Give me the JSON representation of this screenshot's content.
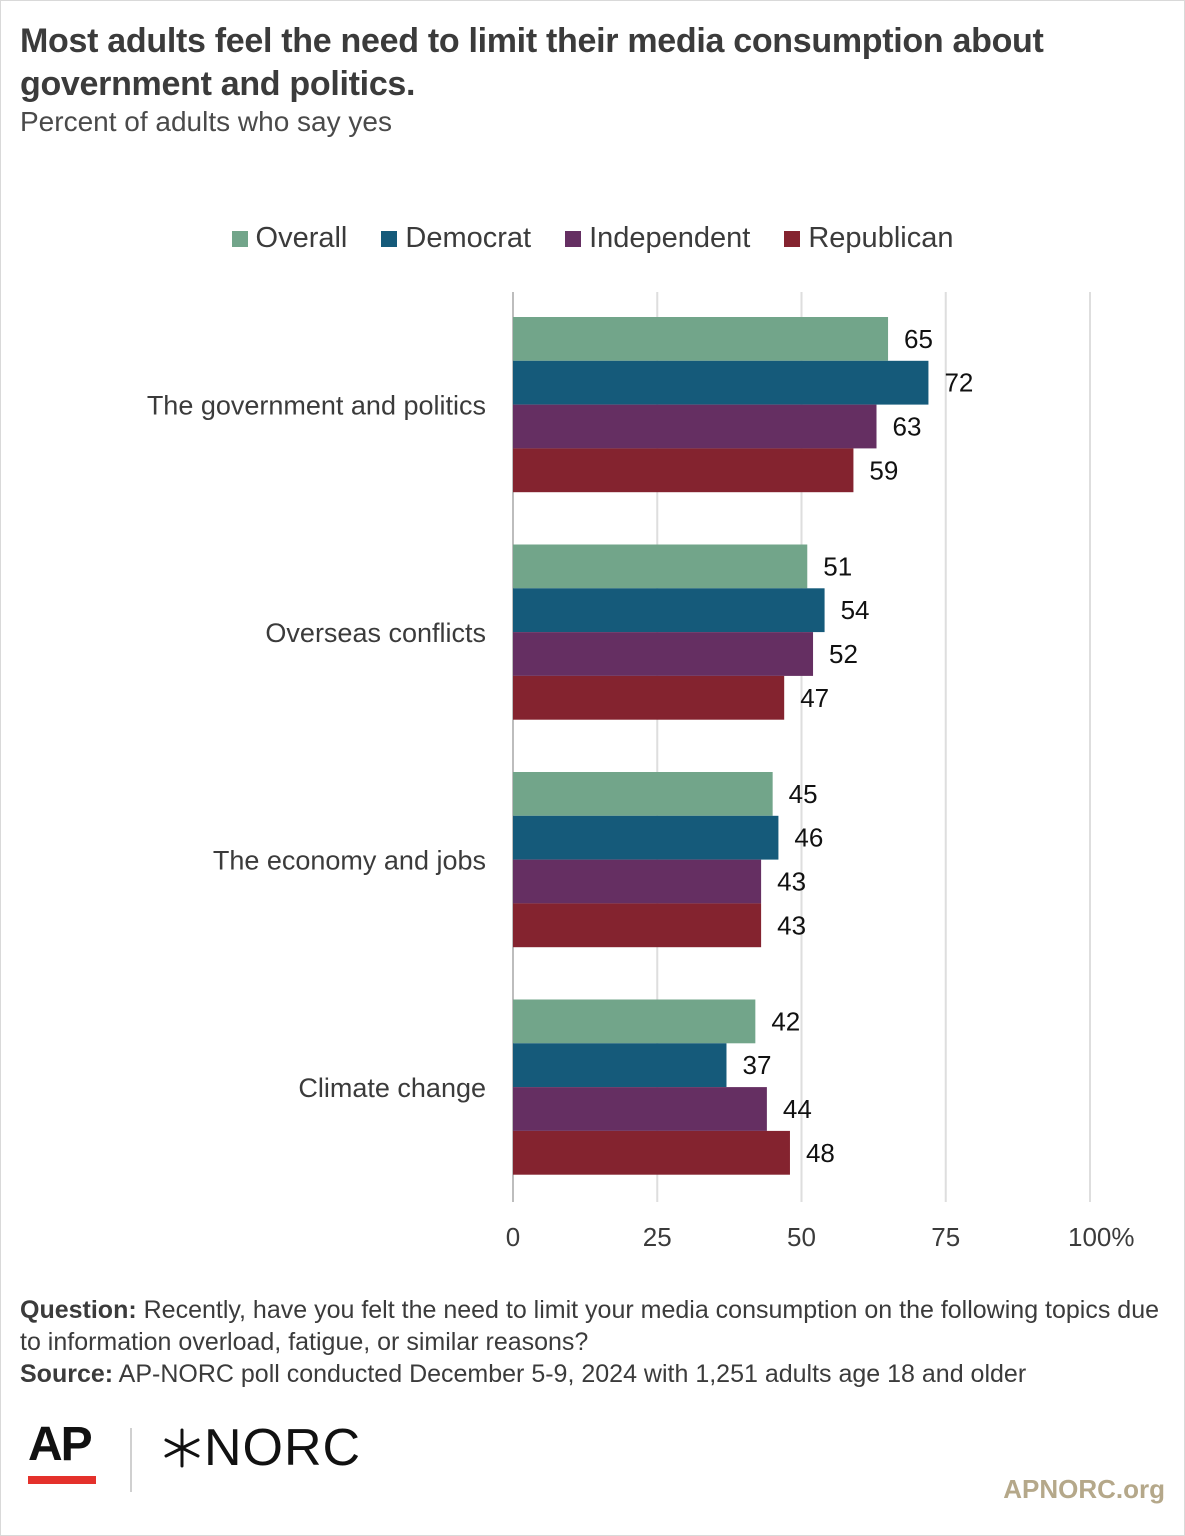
{
  "header": {
    "title": "Most adults feel the need to limit their media consumption about government and politics.",
    "subtitle": "Percent of adults who say yes"
  },
  "colors": {
    "Overall": "#72a58a",
    "Democrat": "#155a7a",
    "Independent": "#652f62",
    "Republican": "#84232f"
  },
  "chart_data": {
    "type": "bar",
    "orientation": "horizontal",
    "categories": [
      "The government and politics",
      "Overseas conflicts",
      "The economy and jobs",
      "Climate change"
    ],
    "series": [
      {
        "name": "Overall",
        "values": [
          65,
          51,
          45,
          42
        ]
      },
      {
        "name": "Democrat",
        "values": [
          72,
          54,
          46,
          37
        ]
      },
      {
        "name": "Independent",
        "values": [
          63,
          52,
          43,
          44
        ]
      },
      {
        "name": "Republican",
        "values": [
          59,
          47,
          43,
          48
        ]
      }
    ],
    "xlim": [
      0,
      100
    ],
    "xticks": [
      "0",
      "25",
      "50",
      "75",
      "100%"
    ],
    "grid": true,
    "legend": "top"
  },
  "notes": {
    "question_label": "Question:",
    "question_text": " Recently, have you felt the need to limit your media consumption on the following topics due to information overload, fatigue, or similar reasons?",
    "source_label": "Source:",
    "source_text": " AP-NORC poll conducted December 5-9, 2024 with 1,251 adults age 18 and older"
  },
  "footer": {
    "ap_logo": "AP",
    "norc_logo": "NORC",
    "site": "APNORC.org"
  }
}
